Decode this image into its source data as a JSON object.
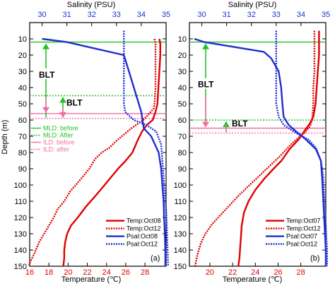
{
  "colors": {
    "temperature": "#e00000",
    "salinity": "#1f2fd0",
    "salinity_axis": "#1a33cc",
    "mld": "#22c322",
    "ild": "#f06fa6",
    "axis": "#000000"
  },
  "chart_data": [
    {
      "type": "line",
      "panel_label": "(a)",
      "xlabel_top": "Salinity (PSU)",
      "xlabel_bottom": "Temperature (℃)",
      "ylabel": "Depth (m)",
      "top_axis": {
        "range": [
          29.5,
          35.0
        ],
        "ticks": [
          30,
          31,
          32,
          33,
          34,
          35
        ]
      },
      "bottom_axis": {
        "range": [
          16,
          30.2
        ],
        "ticks": [
          16,
          18,
          20,
          22,
          24,
          26,
          28
        ]
      },
      "y_axis": {
        "range": [
          0,
          150
        ],
        "ticks": [
          10,
          20,
          30,
          40,
          50,
          60,
          70,
          80,
          90,
          100,
          110,
          120,
          130,
          140,
          150
        ],
        "inverted": true
      },
      "series": [
        {
          "name": "Temp:Oct08",
          "axis": "bottom",
          "style": "solid",
          "points": [
            [
              29.5,
              10
            ],
            [
              29.6,
              13
            ],
            [
              29.6,
              20
            ],
            [
              29.5,
              30
            ],
            [
              29.4,
              40
            ],
            [
              29.3,
              50
            ],
            [
              29.1,
              55
            ],
            [
              28.8,
              60
            ],
            [
              28.2,
              63
            ],
            [
              27.7,
              67
            ],
            [
              27.2,
              73
            ],
            [
              26.7,
              80
            ],
            [
              26.0,
              85
            ],
            [
              25.2,
              90
            ],
            [
              24.5,
              95
            ],
            [
              23.8,
              100
            ],
            [
              22.8,
              107
            ],
            [
              21.9,
              113
            ],
            [
              21.0,
              120
            ],
            [
              20.3,
              125
            ],
            [
              19.9,
              130
            ],
            [
              19.7,
              135
            ],
            [
              19.6,
              140
            ],
            [
              19.6,
              145
            ],
            [
              19.5,
              150
            ]
          ]
        },
        {
          "name": "Temp:Oct12",
          "axis": "bottom",
          "style": "dotted",
          "points": [
            [
              29.0,
              10
            ],
            [
              29.1,
              13
            ],
            [
              29.1,
              20
            ],
            [
              29.1,
              30
            ],
            [
              29.1,
              40
            ],
            [
              29.0,
              50
            ],
            [
              28.9,
              53
            ],
            [
              28.3,
              57
            ],
            [
              27.8,
              60
            ],
            [
              26.6,
              65
            ],
            [
              26.0,
              68
            ],
            [
              25.0,
              73
            ],
            [
              24.3,
              77
            ],
            [
              23.5,
              80
            ],
            [
              22.8,
              84
            ],
            [
              22.2,
              90
            ],
            [
              21.5,
              95
            ],
            [
              20.8,
              100
            ],
            [
              20.2,
              104
            ],
            [
              19.6,
              110
            ],
            [
              18.9,
              115
            ],
            [
              18.5,
              120
            ],
            [
              18.0,
              125
            ],
            [
              17.5,
              130
            ],
            [
              17.0,
              135
            ],
            [
              16.5,
              142
            ],
            [
              16.0,
              148
            ],
            [
              15.9,
              150
            ]
          ]
        },
        {
          "name": "Psal:Oct08",
          "axis": "top",
          "style": "solid",
          "points": [
            [
              30.0,
              10
            ],
            [
              31.0,
              12
            ],
            [
              33.3,
              20
            ],
            [
              33.5,
              30
            ],
            [
              33.6,
              35
            ],
            [
              33.7,
              40
            ],
            [
              33.8,
              45
            ],
            [
              33.9,
              50
            ],
            [
              34.0,
              55
            ],
            [
              34.05,
              60
            ],
            [
              34.1,
              65
            ],
            [
              34.4,
              70
            ],
            [
              34.7,
              80
            ],
            [
              34.8,
              90
            ],
            [
              34.85,
              100
            ],
            [
              34.9,
              110
            ],
            [
              34.92,
              120
            ],
            [
              34.95,
              130
            ],
            [
              34.97,
              140
            ],
            [
              34.97,
              150
            ]
          ]
        },
        {
          "name": "Psal:Oct12",
          "axis": "top",
          "style": "dotted",
          "points": [
            [
              33.3,
              5
            ],
            [
              33.3,
              10
            ],
            [
              33.3,
              20
            ],
            [
              33.3,
              30
            ],
            [
              33.3,
              40
            ],
            [
              33.3,
              50
            ],
            [
              33.35,
              55
            ],
            [
              33.7,
              60
            ],
            [
              34.2,
              63
            ],
            [
              34.6,
              67
            ],
            [
              34.8,
              75
            ],
            [
              34.85,
              85
            ],
            [
              34.9,
              95
            ],
            [
              34.95,
              105
            ],
            [
              35.0,
              115
            ],
            [
              35.03,
              125
            ],
            [
              35.05,
              135
            ],
            [
              35.07,
              145
            ],
            [
              35.08,
              150
            ]
          ]
        }
      ],
      "mld": {
        "before": 12,
        "after": 45
      },
      "ild": {
        "before": 56,
        "after": 59
      },
      "annotations": [
        "BLT",
        "BLT"
      ],
      "legend_top": [
        "MLD: before",
        "MLD: After",
        "ILD: before",
        "ILD: after"
      ]
    },
    {
      "type": "line",
      "panel_label": "(b)",
      "xlabel_top": "Salinity (PSU)",
      "xlabel_bottom": "Temperature (℃)",
      "ylabel": "",
      "top_axis": {
        "range": [
          29.5,
          35.0
        ],
        "ticks": [
          30,
          31,
          32,
          33,
          34,
          35
        ]
      },
      "bottom_axis": {
        "range": [
          18.2,
          30.2
        ],
        "ticks": [
          20,
          22,
          24,
          26,
          28
        ]
      },
      "y_axis": {
        "range": [
          0,
          150
        ],
        "ticks": [
          10,
          20,
          30,
          40,
          50,
          60,
          70,
          80,
          90,
          100,
          110,
          120,
          130,
          140,
          150
        ],
        "inverted": true
      },
      "series": [
        {
          "name": "Temp:Oct07",
          "axis": "bottom",
          "style": "solid",
          "points": [
            [
              29.6,
              5
            ],
            [
              29.6,
              10
            ],
            [
              29.6,
              20
            ],
            [
              29.5,
              30
            ],
            [
              29.4,
              40
            ],
            [
              29.3,
              50
            ],
            [
              29.1,
              58
            ],
            [
              28.8,
              62
            ],
            [
              28.3,
              67
            ],
            [
              27.8,
              72
            ],
            [
              27.0,
              78
            ],
            [
              26.3,
              85
            ],
            [
              25.6,
              90
            ],
            [
              24.8,
              96
            ],
            [
              24.0,
              103
            ],
            [
              23.4,
              110
            ],
            [
              23.0,
              117
            ],
            [
              22.8,
              125
            ],
            [
              22.7,
              135
            ],
            [
              22.6,
              145
            ],
            [
              22.5,
              150
            ]
          ]
        },
        {
          "name": "Temp:Oct12",
          "axis": "bottom",
          "style": "dotted",
          "points": [
            [
              29.2,
              5
            ],
            [
              29.2,
              10
            ],
            [
              29.2,
              20
            ],
            [
              29.2,
              30
            ],
            [
              29.1,
              40
            ],
            [
              29.1,
              50
            ],
            [
              29.0,
              60
            ],
            [
              28.8,
              64
            ],
            [
              28.3,
              68
            ],
            [
              27.6,
              72
            ],
            [
              27.0,
              76
            ],
            [
              26.2,
              82
            ],
            [
              25.3,
              88
            ],
            [
              24.4,
              94
            ],
            [
              23.5,
              100
            ],
            [
              22.6,
              106
            ],
            [
              21.8,
              112
            ],
            [
              21.0,
              118
            ],
            [
              20.2,
              124
            ],
            [
              19.6,
              130
            ],
            [
              19.2,
              136
            ],
            [
              18.9,
              143
            ],
            [
              18.7,
              150
            ]
          ]
        },
        {
          "name": "Psal:Oct07",
          "axis": "top",
          "style": "solid",
          "points": [
            [
              29.7,
              10
            ],
            [
              30.1,
              12
            ],
            [
              32.5,
              18
            ],
            [
              32.8,
              22
            ],
            [
              33.1,
              30
            ],
            [
              33.2,
              40
            ],
            [
              33.25,
              50
            ],
            [
              33.3,
              58
            ],
            [
              33.5,
              63
            ],
            [
              33.8,
              67
            ],
            [
              34.2,
              72
            ],
            [
              34.6,
              78
            ],
            [
              34.8,
              85
            ],
            [
              34.85,
              95
            ],
            [
              34.9,
              110
            ],
            [
              34.95,
              125
            ],
            [
              35.0,
              140
            ],
            [
              35.0,
              150
            ]
          ]
        },
        {
          "name": "Psal:Oct12",
          "axis": "top",
          "style": "dotted",
          "points": [
            [
              33.0,
              5
            ],
            [
              33.0,
              10
            ],
            [
              33.0,
              20
            ],
            [
              33.0,
              30
            ],
            [
              33.0,
              40
            ],
            [
              33.0,
              50
            ],
            [
              33.1,
              58
            ],
            [
              33.3,
              63
            ],
            [
              33.8,
              68
            ],
            [
              34.3,
              72
            ],
            [
              34.6,
              77
            ],
            [
              34.8,
              85
            ],
            [
              34.9,
              95
            ],
            [
              34.95,
              110
            ],
            [
              35.0,
              125
            ],
            [
              35.05,
              140
            ],
            [
              35.05,
              150
            ]
          ]
        }
      ],
      "mld": {
        "before": 12,
        "after": 60
      },
      "ild": {
        "before": 65,
        "after": 68
      },
      "annotations": [
        "BLT",
        "BLT"
      ]
    }
  ]
}
